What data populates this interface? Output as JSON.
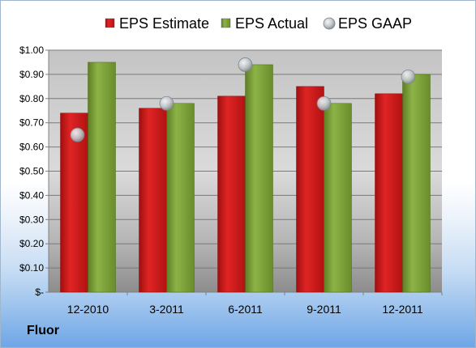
{
  "company": "Fluor",
  "colors": {
    "estimate": "#cc1b1b",
    "actual": "#7fa33a",
    "gaap": "#bfc4c9"
  },
  "chart_data": {
    "type": "bar",
    "title": "",
    "xlabel": "",
    "ylabel": "",
    "categories": [
      "12-2010",
      "3-2011",
      "6-2011",
      "9-2011",
      "12-2011"
    ],
    "series": [
      {
        "name": "EPS Estimate",
        "kind": "bar",
        "values": [
          0.74,
          0.76,
          0.81,
          0.85,
          0.82
        ]
      },
      {
        "name": "EPS Actual",
        "kind": "bar",
        "values": [
          0.95,
          0.78,
          0.94,
          0.78,
          0.9
        ]
      },
      {
        "name": "EPS GAAP",
        "kind": "marker",
        "values": [
          0.65,
          0.78,
          0.94,
          0.78,
          0.89
        ]
      }
    ],
    "ylim": [
      0,
      1.0
    ],
    "yticks": [
      {
        "value": 0,
        "label": "$-"
      },
      {
        "value": 0.1,
        "label": "$0.10"
      },
      {
        "value": 0.2,
        "label": "$0.20"
      },
      {
        "value": 0.3,
        "label": "$0.30"
      },
      {
        "value": 0.4,
        "label": "$0.40"
      },
      {
        "value": 0.5,
        "label": "$0.50"
      },
      {
        "value": 0.6,
        "label": "$0.60"
      },
      {
        "value": 0.7,
        "label": "$0.70"
      },
      {
        "value": 0.8,
        "label": "$0.80"
      },
      {
        "value": 0.9,
        "label": "$0.90"
      },
      {
        "value": 1.0,
        "label": "$1.00"
      }
    ],
    "grid": true,
    "legend": "top-center"
  }
}
